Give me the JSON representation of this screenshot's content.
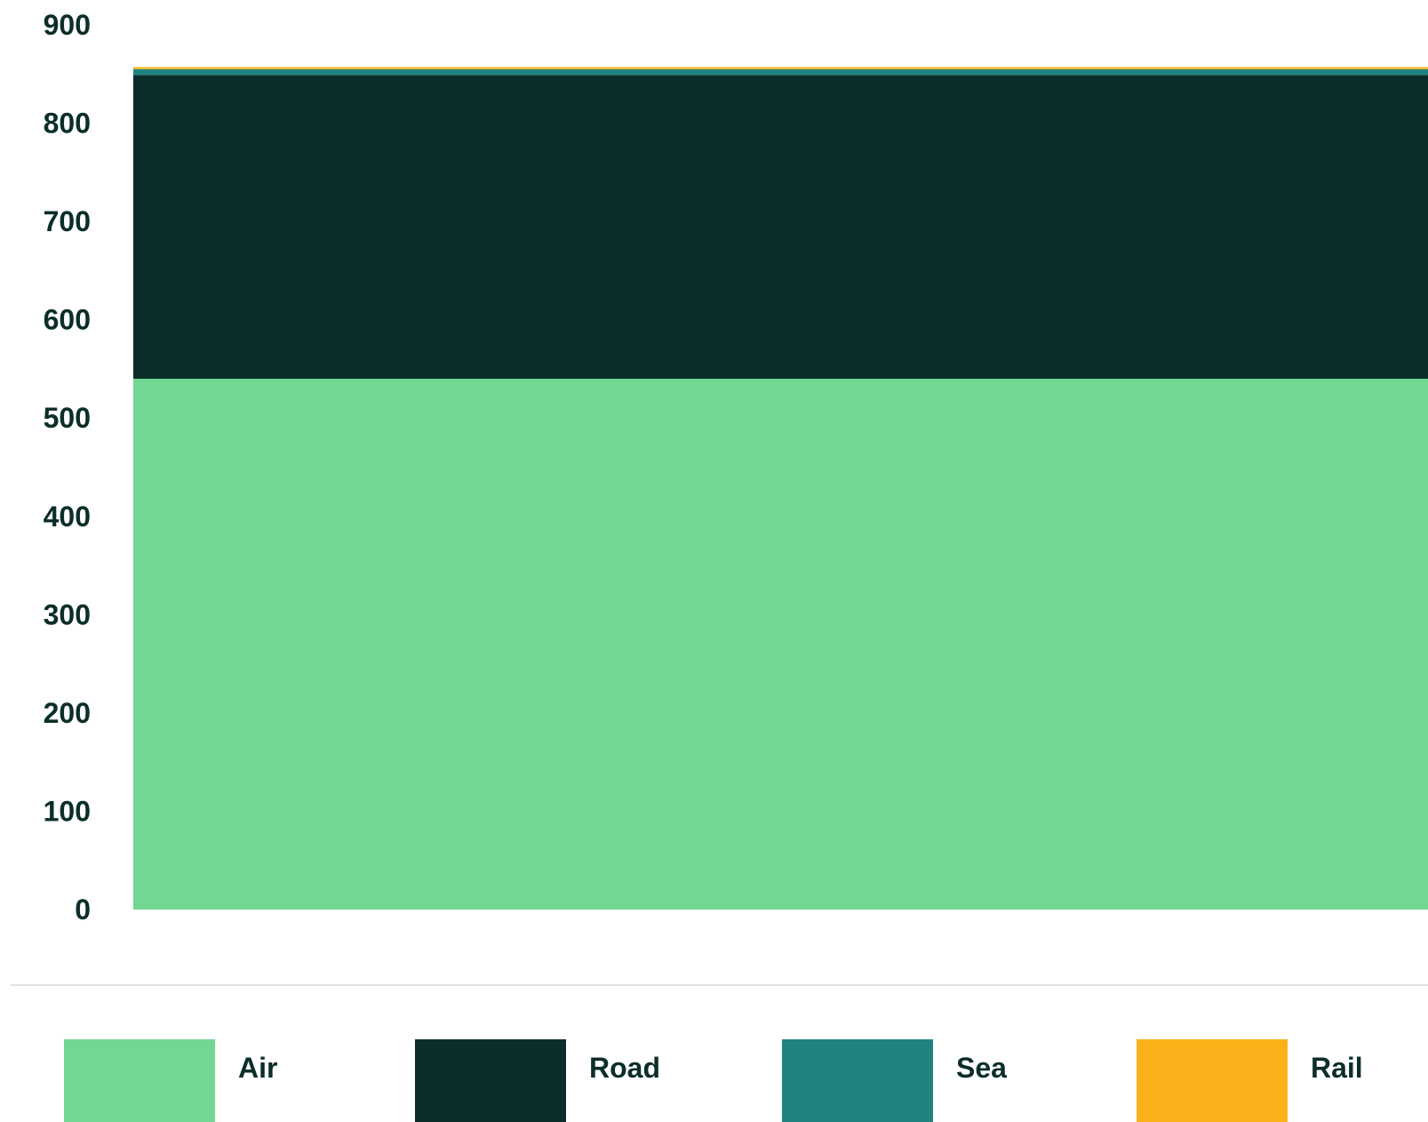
{
  "chart_data": {
    "type": "bar",
    "stacked": true,
    "categories": [
      ""
    ],
    "series": [
      {
        "name": "Air",
        "color": "#72d793",
        "values": [
          540
        ]
      },
      {
        "name": "Road",
        "color": "#0c2e2a",
        "values": [
          309
        ]
      },
      {
        "name": "Sea",
        "color": "#218380",
        "values": [
          6
        ]
      },
      {
        "name": "Rail",
        "color": "#fbb21a",
        "values": [
          2
        ]
      }
    ],
    "y_ticks": [
      "0",
      "100",
      "200",
      "300",
      "400",
      "500",
      "600",
      "700",
      "800",
      "900"
    ],
    "ylim": [
      0,
      900
    ],
    "grid": false,
    "legend_position": "bottom"
  }
}
